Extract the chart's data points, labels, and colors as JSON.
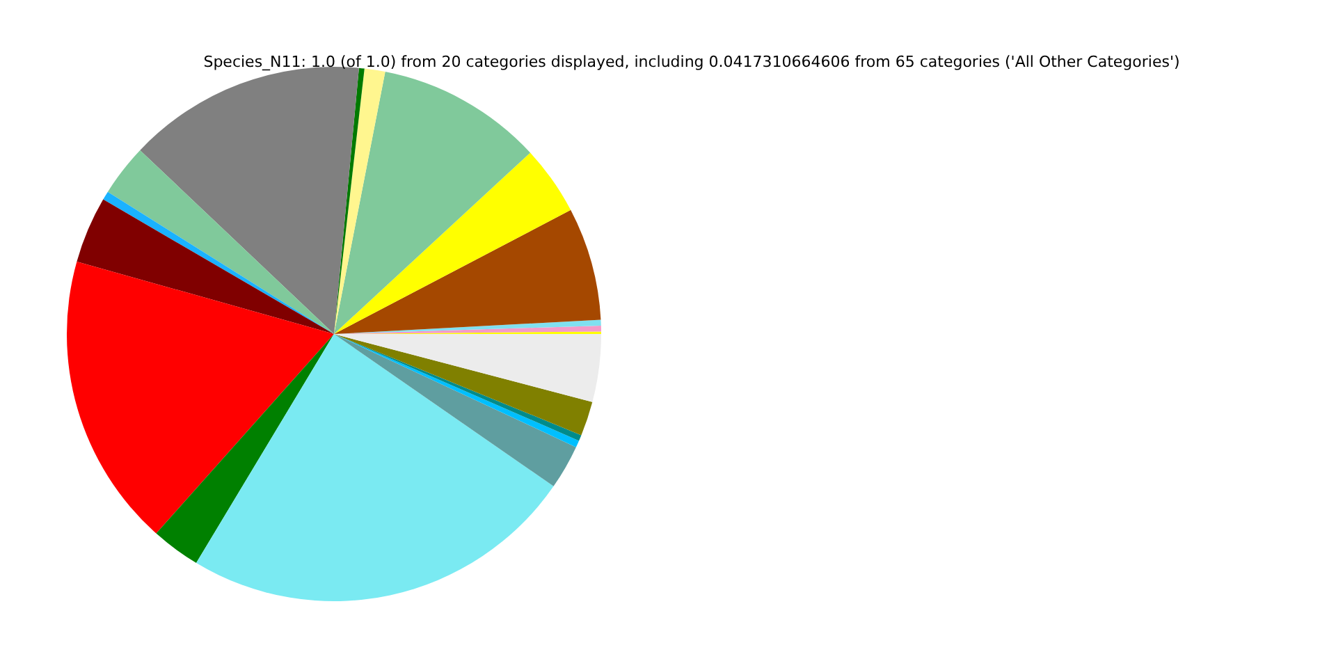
{
  "chart_data": {
    "type": "pie",
    "title": "Species_N11: 1.0 (of 1.0) from 20 categories displayed, including 0.0417310664606 from 65 categories ('All Other Categories')",
    "categories": [
      null,
      null,
      null,
      null,
      null,
      null,
      null,
      null,
      null,
      null,
      null,
      null,
      null,
      null,
      null,
      null,
      null,
      null,
      null,
      null
    ],
    "values": [
      0.15,
      0.35,
      0.35,
      6.83,
      4.19,
      10.06,
      1.25,
      0.33,
      14.42,
      3.14,
      0.53,
      4.03,
      17.78,
      2.97,
      23.97,
      2.69,
      0.42,
      0.36,
      2.08,
      4.1
    ],
    "colors": [
      "#ffff00",
      "#f49ac8",
      "#80e0f0",
      "#a54800",
      "#ffff00",
      "#80c99b",
      "#fff68f",
      "#007a00",
      "#808080",
      "#80c99b",
      "#1ab2ff",
      "#800000",
      "#ff0000",
      "#008000",
      "#7aeaf2",
      "#5f9ea0",
      "#00bfff",
      "#008b8b",
      "#808000",
      "#ececec"
    ]
  }
}
